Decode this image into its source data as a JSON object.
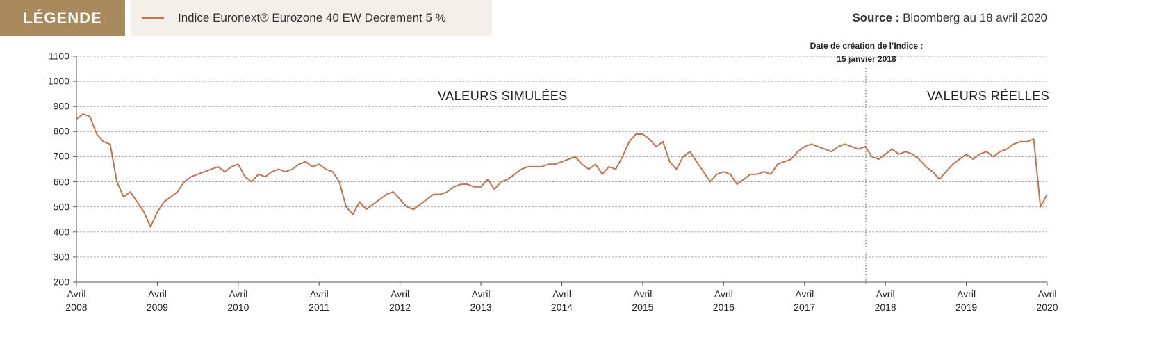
{
  "legend_title": "LÉGENDE",
  "source_label": "Source :",
  "source_text": "Bloomberg au 18 avril 2020",
  "chart_data": {
    "type": "line",
    "annotation": "Date de création de l’Indice :\n15 janvier 2018",
    "region_labels": [
      "VALEURS SIMULÉES",
      "VALEURS RÉELLES"
    ],
    "x": [
      "2008-04",
      "2008-05",
      "2008-06",
      "2008-07",
      "2008-08",
      "2008-09",
      "2008-10",
      "2008-11",
      "2008-12",
      "2009-01",
      "2009-02",
      "2009-03",
      "2009-04",
      "2009-05",
      "2009-06",
      "2009-07",
      "2009-08",
      "2009-09",
      "2009-10",
      "2009-11",
      "2009-12",
      "2010-01",
      "2010-02",
      "2010-03",
      "2010-04",
      "2010-05",
      "2010-06",
      "2010-07",
      "2010-08",
      "2010-09",
      "2010-10",
      "2010-11",
      "2010-12",
      "2011-01",
      "2011-02",
      "2011-03",
      "2011-04",
      "2011-05",
      "2011-06",
      "2011-07",
      "2011-08",
      "2011-09",
      "2011-10",
      "2011-11",
      "2011-12",
      "2012-01",
      "2012-02",
      "2012-03",
      "2012-04",
      "2012-05",
      "2012-06",
      "2012-07",
      "2012-08",
      "2012-09",
      "2012-10",
      "2012-11",
      "2012-12",
      "2013-01",
      "2013-02",
      "2013-03",
      "2013-04",
      "2013-05",
      "2013-06",
      "2013-07",
      "2013-08",
      "2013-09",
      "2013-10",
      "2013-11",
      "2013-12",
      "2014-01",
      "2014-02",
      "2014-03",
      "2014-04",
      "2014-05",
      "2014-06",
      "2014-07",
      "2014-08",
      "2014-09",
      "2014-10",
      "2014-11",
      "2014-12",
      "2015-01",
      "2015-02",
      "2015-03",
      "2015-04",
      "2015-05",
      "2015-06",
      "2015-07",
      "2015-08",
      "2015-09",
      "2015-10",
      "2015-11",
      "2015-12",
      "2016-01",
      "2016-02",
      "2016-03",
      "2016-04",
      "2016-05",
      "2016-06",
      "2016-07",
      "2016-08",
      "2016-09",
      "2016-10",
      "2016-11",
      "2016-12",
      "2017-01",
      "2017-02",
      "2017-03",
      "2017-04",
      "2017-05",
      "2017-06",
      "2017-07",
      "2017-08",
      "2017-09",
      "2017-10",
      "2017-11",
      "2017-12",
      "2018-01",
      "2018-02",
      "2018-03",
      "2018-04",
      "2018-05",
      "2018-06",
      "2018-07",
      "2018-08",
      "2018-09",
      "2018-10",
      "2018-11",
      "2018-12",
      "2019-01",
      "2019-02",
      "2019-03",
      "2019-04",
      "2019-05",
      "2019-06",
      "2019-07",
      "2019-08",
      "2019-09",
      "2019-10",
      "2019-11",
      "2019-12",
      "2020-01",
      "2020-02",
      "2020-03",
      "2020-04"
    ],
    "series": [
      {
        "name": "Indice Euronext® Eurozone 40 EW Decrement 5 %",
        "color": "#c8704a",
        "values": [
          850,
          870,
          860,
          790,
          760,
          750,
          600,
          540,
          560,
          520,
          480,
          420,
          480,
          520,
          540,
          560,
          600,
          620,
          630,
          640,
          650,
          660,
          640,
          660,
          670,
          620,
          600,
          630,
          620,
          640,
          650,
          640,
          650,
          670,
          680,
          660,
          670,
          650,
          640,
          600,
          500,
          470,
          520,
          490,
          510,
          530,
          550,
          560,
          530,
          500,
          490,
          510,
          530,
          550,
          550,
          560,
          580,
          590,
          590,
          580,
          580,
          610,
          570,
          600,
          610,
          630,
          650,
          660,
          660,
          660,
          670,
          670,
          680,
          690,
          700,
          670,
          650,
          670,
          630,
          660,
          650,
          700,
          760,
          790,
          790,
          770,
          740,
          760,
          680,
          650,
          700,
          720,
          680,
          640,
          600,
          630,
          640,
          630,
          590,
          610,
          630,
          630,
          640,
          630,
          670,
          680,
          690,
          720,
          740,
          750,
          740,
          730,
          720,
          740,
          750,
          740,
          730,
          740,
          700,
          690,
          710,
          730,
          710,
          720,
          710,
          690,
          660,
          640,
          610,
          640,
          670,
          690,
          710,
          690,
          710,
          720,
          700,
          720,
          730,
          750,
          760,
          760,
          770,
          500,
          550
        ]
      }
    ],
    "xlim": [
      "2008-04",
      "2020-04"
    ],
    "xticks": [
      {
        "value": "2008-04",
        "label": "Avril\n2008"
      },
      {
        "value": "2009-04",
        "label": "Avril\n2009"
      },
      {
        "value": "2010-04",
        "label": "Avril\n2010"
      },
      {
        "value": "2011-04",
        "label": "Avril\n2011"
      },
      {
        "value": "2012-04",
        "label": "Avril\n2012"
      },
      {
        "value": "2013-04",
        "label": "Avril\n2013"
      },
      {
        "value": "2014-04",
        "label": "Avril\n2014"
      },
      {
        "value": "2015-04",
        "label": "Avril\n2015"
      },
      {
        "value": "2016-04",
        "label": "Avril\n2016"
      },
      {
        "value": "2017-04",
        "label": "Avril\n2017"
      },
      {
        "value": "2018-04",
        "label": "Avril\n2018"
      },
      {
        "value": "2019-04",
        "label": "Avril\n2019"
      },
      {
        "value": "2020-04",
        "label": "Avril\n2020"
      }
    ],
    "ylim": [
      200,
      1100
    ],
    "yticks": [
      200,
      300,
      400,
      500,
      600,
      700,
      800,
      900,
      1000,
      1100
    ],
    "grid": true
  }
}
